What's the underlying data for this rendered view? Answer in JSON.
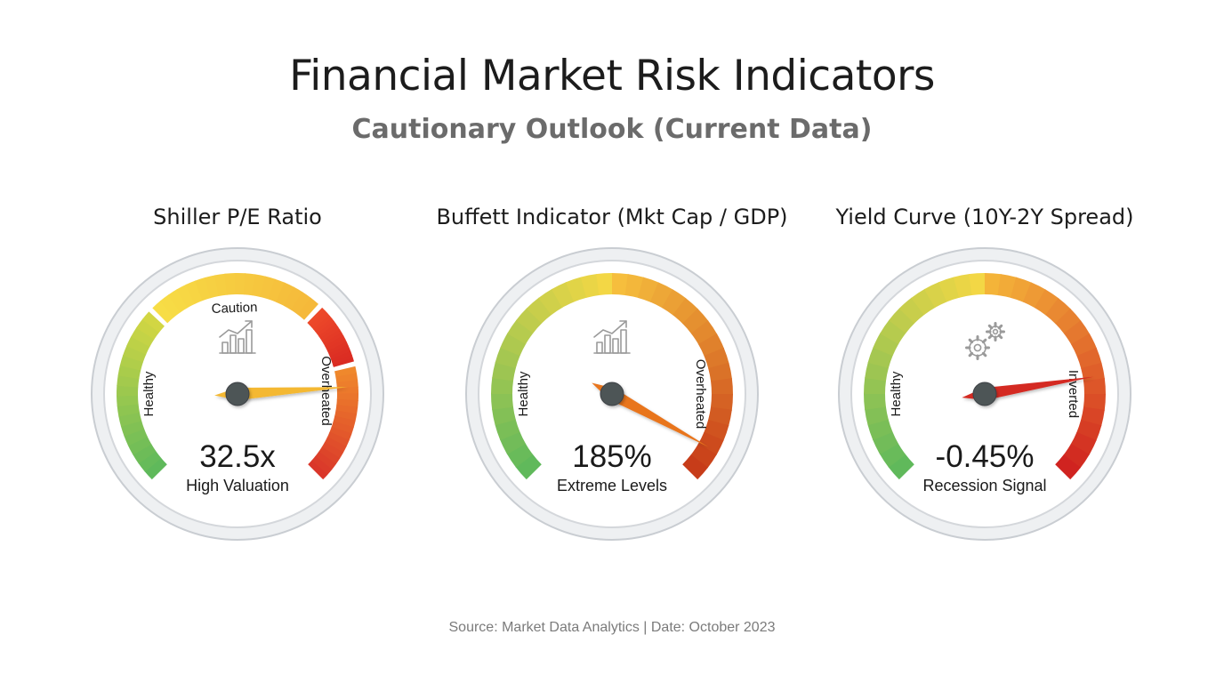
{
  "header": {
    "title": "Financial Market Risk Indicators",
    "subtitle": "Cautionary Outlook (Current Data)"
  },
  "footer": {
    "source": "Source: Market Data Analytics | Date: October 2023"
  },
  "chart_data": [
    {
      "type": "gauge",
      "title": "Shiller P/E Ratio",
      "value": 32.5,
      "value_label": "32.5x",
      "status": "High Valuation",
      "needle_fraction": 0.82,
      "icon": "bar-chart-trend-icon",
      "zones": [
        {
          "label": "Healthy",
          "from": 0.0,
          "to": 0.33,
          "colors": [
            "#5cb85c",
            "#d5d742"
          ]
        },
        {
          "label": "Caution",
          "from": 0.33,
          "to": 0.66,
          "colors": [
            "#f7de46",
            "#f5b83a"
          ]
        },
        {
          "label": "",
          "from": 0.66,
          "to": 0.78,
          "colors": [
            "#ee4a2a",
            "#d92a22"
          ]
        },
        {
          "label": "Overheated",
          "from": 0.78,
          "to": 1.0,
          "colors": [
            "#f08a2c",
            "#d9342a"
          ]
        }
      ]
    },
    {
      "type": "gauge",
      "title": "Buffett Indicator (Mkt Cap / GDP)",
      "value": 185,
      "value_label": "185%",
      "status": "Extreme Levels",
      "needle_fraction": 0.94,
      "icon": "bar-chart-trend-icon",
      "zones": [
        {
          "label": "Healthy",
          "from": 0.0,
          "to": 0.5,
          "colors": [
            "#5cb85c",
            "#f7d844"
          ]
        },
        {
          "label": "Overheated",
          "from": 0.5,
          "to": 1.0,
          "colors": [
            "#f7c23e",
            "#c63818"
          ]
        }
      ]
    },
    {
      "type": "gauge",
      "title": "Yield Curve (10Y-2Y Spread)",
      "value": -0.45,
      "value_label": "-0.45%",
      "status": "Recession Signal",
      "needle_fraction": 0.8,
      "icon": "gears-icon",
      "zones": [
        {
          "label": "Healthy",
          "from": 0.0,
          "to": 0.5,
          "colors": [
            "#5cb85c",
            "#f7d844"
          ]
        },
        {
          "label": "Inverted",
          "from": 0.5,
          "to": 1.0,
          "colors": [
            "#f5b83a",
            "#cf1f1f"
          ]
        }
      ]
    }
  ]
}
